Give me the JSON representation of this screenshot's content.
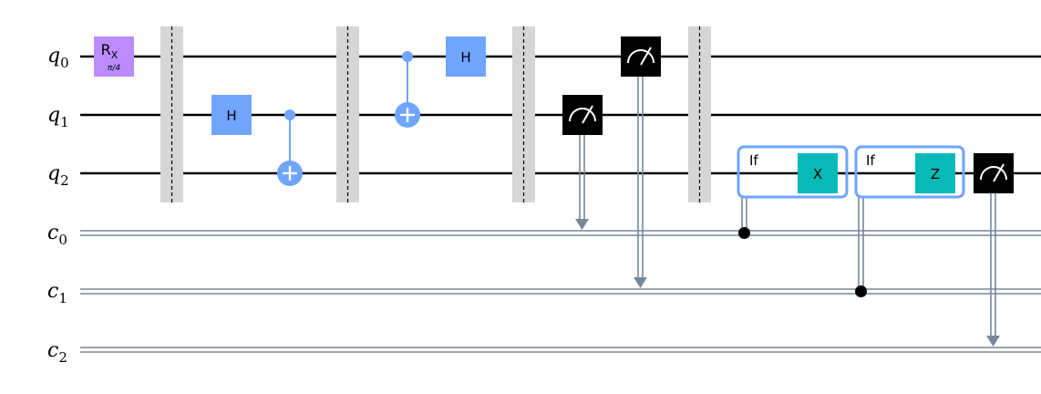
{
  "qubits": [
    {
      "name": "q",
      "index": "0"
    },
    {
      "name": "q",
      "index": "1"
    },
    {
      "name": "q",
      "index": "2"
    }
  ],
  "clbits": [
    {
      "name": "c",
      "index": "0"
    },
    {
      "name": "c",
      "index": "1"
    },
    {
      "name": "c",
      "index": "2"
    }
  ],
  "gates": {
    "rx": {
      "label": "R",
      "sub": "X",
      "param": "π/4"
    },
    "h1": {
      "label": "H"
    },
    "h2": {
      "label": "H"
    },
    "x_gate": {
      "label": "X"
    },
    "z_gate": {
      "label": "Z"
    },
    "if1": {
      "label": "If"
    },
    "if2": {
      "label": "If"
    }
  },
  "colors": {
    "rx_gate": "#bb8bff",
    "h_gate": "#6fa4ff",
    "cnot": "#6fa4ff",
    "measure": "#000000",
    "if_box": "#6fa4ff",
    "pauli_gate": "#05bab6",
    "classical_wire": "#778899",
    "barrier": "#d6d6d6"
  }
}
